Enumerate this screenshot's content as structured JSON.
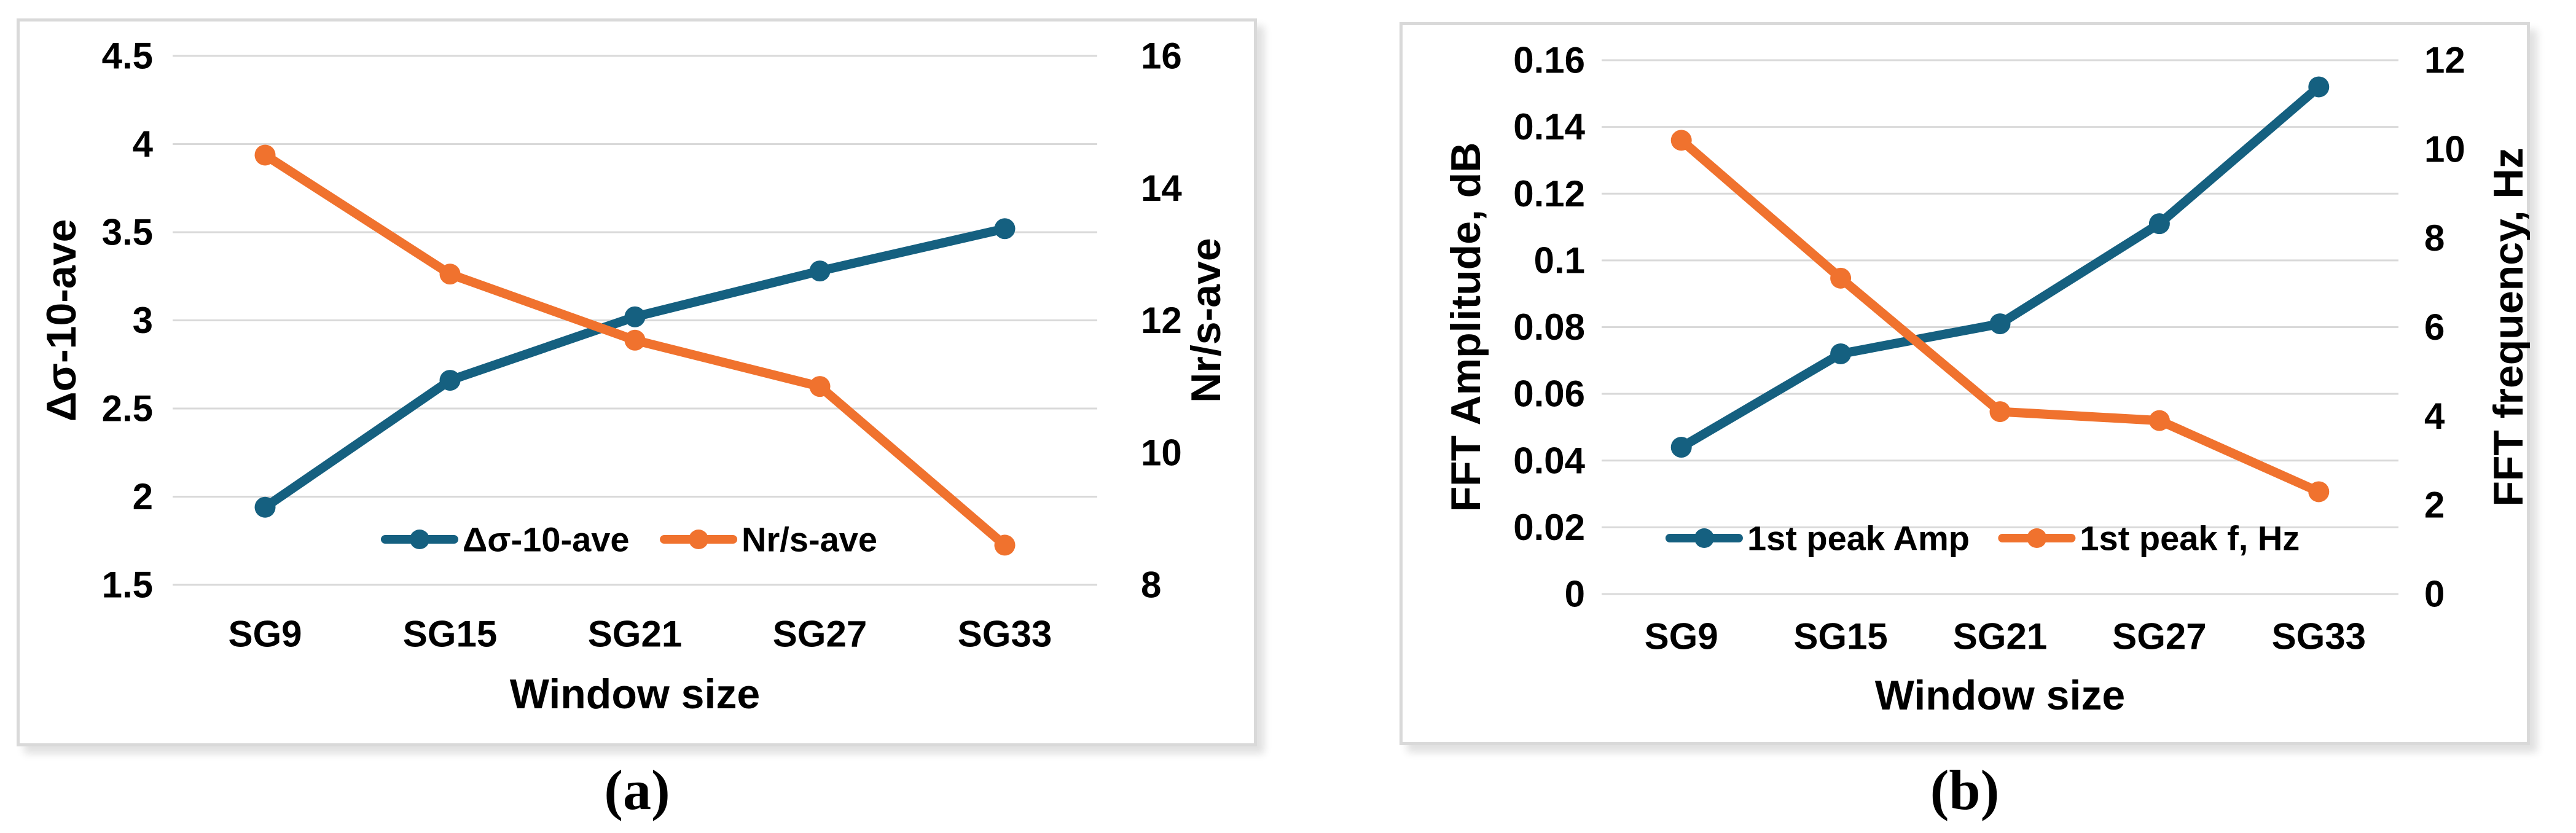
{
  "figure": {
    "background": "#ffffff"
  },
  "colors": {
    "series_teal": "#156080",
    "series_orange": "#F0722E",
    "gridline": "#D9D9D9",
    "panel_border": "#D9D9D9",
    "text": "#000000"
  },
  "chart_data": [
    {
      "type": "line",
      "caption": "(a)",
      "categories": [
        "SG9",
        "SG15",
        "SG21",
        "SG27",
        "SG33"
      ],
      "xlabel": "Window size",
      "grid": true,
      "legend_position": "inside-bottom-center",
      "left_axis": {
        "label": "Δσ-10-ave",
        "min": 1.5,
        "max": 4.5,
        "ticks": [
          "4.5",
          "4",
          "3.5",
          "3",
          "2.5",
          "2",
          "1.5"
        ]
      },
      "right_axis": {
        "label": "Nr/s-ave",
        "min": 8,
        "max": 16,
        "ticks": [
          "16",
          "14",
          "12",
          "10",
          "8"
        ]
      },
      "series": [
        {
          "name": "Δσ-10-ave",
          "axis": "left",
          "color": "#156080",
          "values": [
            1.94,
            2.66,
            3.02,
            3.28,
            3.52
          ]
        },
        {
          "name": "Nr/s-ave",
          "axis": "right",
          "color": "#F0722E",
          "values": [
            14.5,
            12.7,
            11.7,
            11.0,
            8.6
          ]
        }
      ]
    },
    {
      "type": "line",
      "caption": "(b)",
      "categories": [
        "SG9",
        "SG15",
        "SG21",
        "SG27",
        "SG33"
      ],
      "xlabel": "Window size",
      "grid": true,
      "legend_position": "inside-bottom-center",
      "left_axis": {
        "label": "FFT Amplitude, dB",
        "min": 0,
        "max": 0.16,
        "ticks": [
          "0.16",
          "0.14",
          "0.12",
          "0.1",
          "0.08",
          "0.06",
          "0.04",
          "0.02",
          "0"
        ]
      },
      "right_axis": {
        "label": "FFT frequency, Hz",
        "min": 0,
        "max": 12,
        "ticks": [
          "12",
          "10",
          "8",
          "6",
          "4",
          "2",
          "0"
        ]
      },
      "series": [
        {
          "name": "1st peak Amp",
          "axis": "left",
          "color": "#156080",
          "values": [
            0.044,
            0.072,
            0.081,
            0.111,
            0.152
          ]
        },
        {
          "name": "1st peak f, Hz",
          "axis": "right",
          "color": "#F0722E",
          "values": [
            10.2,
            7.1,
            4.1,
            3.9,
            2.3
          ]
        }
      ]
    }
  ]
}
